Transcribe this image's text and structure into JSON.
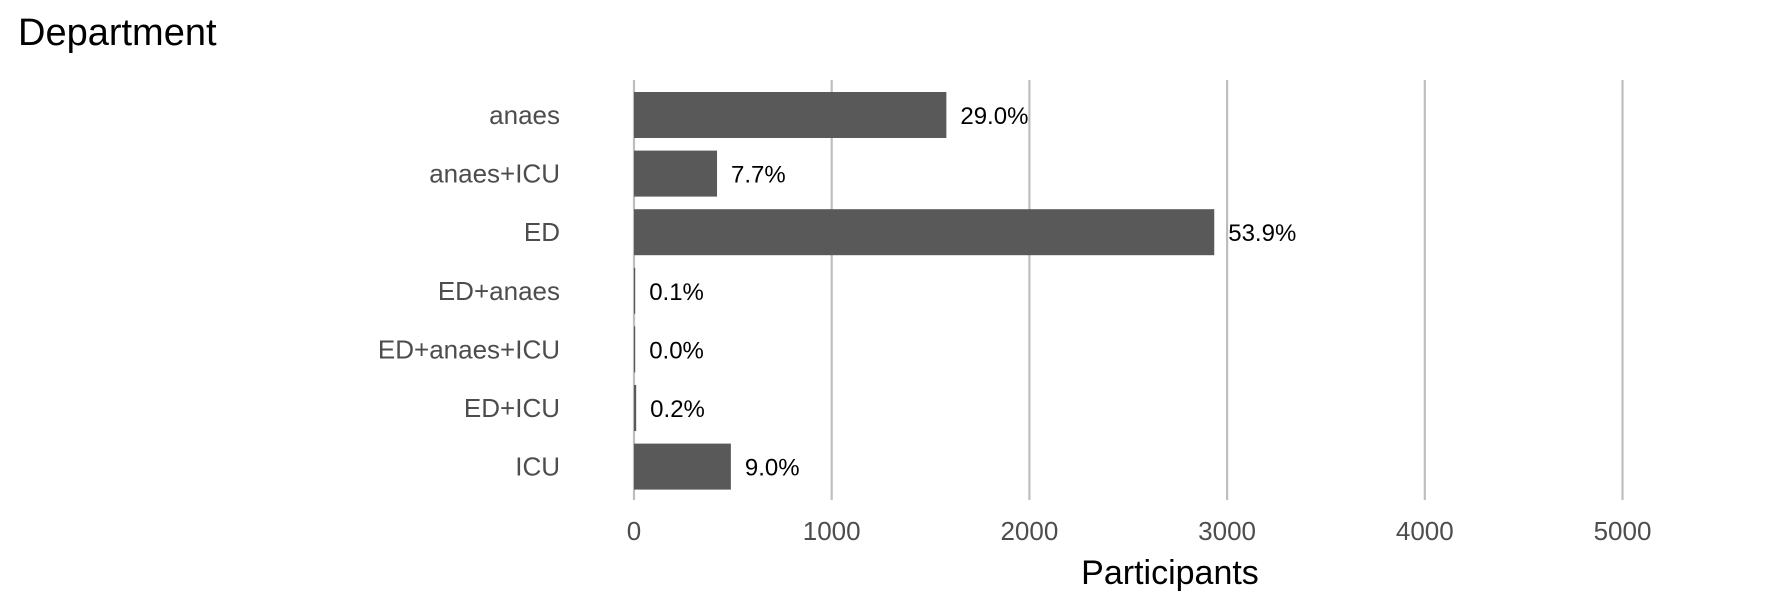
{
  "chart_data": {
    "type": "bar",
    "orientation": "horizontal",
    "title": "Department",
    "xlabel": "Participants",
    "ylabel": "",
    "categories": [
      "anaes",
      "anaes+ICU",
      "ED",
      "ED+anaes",
      "ED+anaes+ICU",
      "ED+ICU",
      "ICU"
    ],
    "values": [
      1580,
      420,
      2935,
      6,
      2,
      11,
      490
    ],
    "data_labels": [
      "29.0%",
      "7.7%",
      "53.9%",
      "0.1%",
      "0.0%",
      "0.2%",
      "9.0%"
    ],
    "xlim": [
      0,
      5500
    ],
    "xticks": [
      0,
      1000,
      2000,
      3000,
      4000,
      5000
    ],
    "xtick_labels": [
      "0",
      "1000",
      "2000",
      "3000",
      "4000",
      "5000"
    ],
    "grid": "vertical major",
    "legend": "none"
  },
  "colors": {
    "bar": "#595959",
    "grid": "#bebebe",
    "text": "#4d4d4d"
  }
}
